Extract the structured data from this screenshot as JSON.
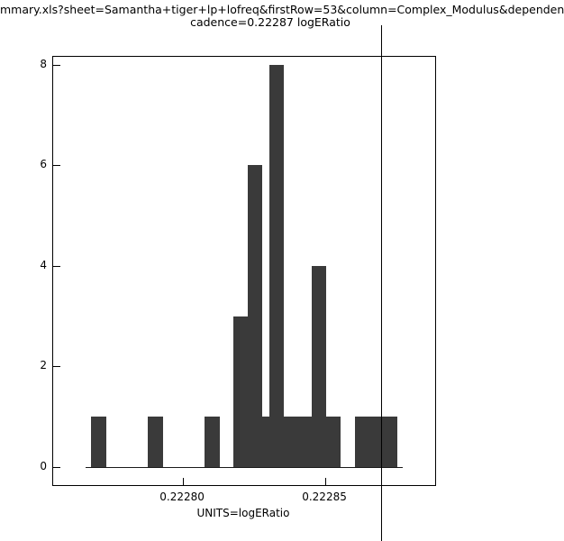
{
  "chart_data": {
    "type": "bar",
    "title": "mmary.xls?sheet=Samantha+tiger+lp+lofreq&firstRow=53&column=Complex_Modulus&dependen",
    "subtitle": "cadence=0.22287 logERatio",
    "xlabel": "UNITS=logERatio",
    "ylabel": "",
    "legend": "none",
    "grid": false,
    "bar_color": "#3a3a3a",
    "xlim": [
      0.2227544,
      0.2228886
    ],
    "ylim": [
      -0.36,
      8.16
    ],
    "xticks": [
      {
        "value": 0.2228,
        "label": "0.22280"
      },
      {
        "value": 0.22285,
        "label": "0.22285"
      }
    ],
    "yticks": [
      {
        "value": 0,
        "label": "0"
      },
      {
        "value": 2,
        "label": "2"
      },
      {
        "value": 4,
        "label": "4"
      },
      {
        "value": 6,
        "label": "6"
      },
      {
        "value": 8,
        "label": "8"
      }
    ],
    "marker_line_x": 0.22287,
    "bars": [
      {
        "x1": 0.2227677,
        "x2": 0.2227731,
        "count": 1
      },
      {
        "x1": 0.2227877,
        "x2": 0.222793,
        "count": 1
      },
      {
        "x1": 0.2228076,
        "x2": 0.222813,
        "count": 1
      },
      {
        "x1": 0.2228177,
        "x2": 0.2228228,
        "count": 3
      },
      {
        "x1": 0.2228228,
        "x2": 0.2228278,
        "count": 6
      },
      {
        "x1": 0.2228278,
        "x2": 0.2228304,
        "count": 1
      },
      {
        "x1": 0.2228304,
        "x2": 0.2228354,
        "count": 8
      },
      {
        "x1": 0.2228354,
        "x2": 0.2228453,
        "count": 1
      },
      {
        "x1": 0.2228453,
        "x2": 0.2228503,
        "count": 4
      },
      {
        "x1": 0.2228503,
        "x2": 0.2228554,
        "count": 1
      },
      {
        "x1": 0.2228604,
        "x2": 0.2228753,
        "count": 1
      }
    ]
  }
}
